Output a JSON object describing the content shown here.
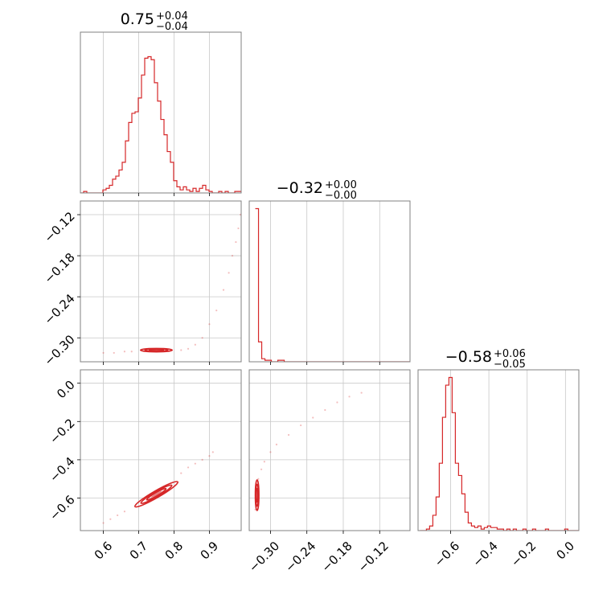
{
  "chart_data": {
    "type": "corner",
    "line_color": "#d62728",
    "grid": true,
    "panels": [
      {
        "id": "hist-p1",
        "type": "histogram",
        "row": 0,
        "col": 0,
        "title": {
          "median": "0.75",
          "plus": "+0.04",
          "minus": "−0.04"
        },
        "xlim": [
          0.535,
          0.99
        ],
        "ylim": [
          0,
          1.05
        ],
        "xticks": [
          0.6,
          0.7,
          0.8,
          0.9
        ],
        "bin_start": 0.535,
        "bin_width": 0.0091,
        "values": [
          0.0,
          0.01,
          0.0,
          0.0,
          0.0,
          0.0,
          0.0,
          0.02,
          0.03,
          0.05,
          0.09,
          0.11,
          0.15,
          0.2,
          0.34,
          0.46,
          0.52,
          0.53,
          0.62,
          0.77,
          0.88,
          0.89,
          0.87,
          0.72,
          0.6,
          0.48,
          0.38,
          0.27,
          0.2,
          0.08,
          0.04,
          0.02,
          0.04,
          0.02,
          0.01,
          0.03,
          0.01,
          0.03,
          0.05,
          0.02,
          0.01,
          0.0,
          0.0,
          0.01,
          0.0,
          0.01,
          0.0,
          0.0,
          0.01,
          0.01
        ]
      },
      {
        "id": "scatter-p1-p2",
        "type": "scatter",
        "row": 1,
        "col": 0,
        "xlim": [
          0.535,
          0.99
        ],
        "ylim": [
          -0.335,
          -0.1
        ],
        "xticks": [
          0.6,
          0.7,
          0.8,
          0.9
        ],
        "yticks": [
          -0.3,
          -0.24,
          -0.18,
          -0.12
        ],
        "ytick_labels": [
          "−0.30",
          "−0.24",
          "−0.18",
          "−0.12"
        ],
        "contour": {
          "center": [
            0.75,
            -0.318
          ],
          "radii": [
            0.045,
            0.0025
          ]
        },
        "points": [
          [
            0.6,
            -0.322
          ],
          [
            0.63,
            -0.322
          ],
          [
            0.66,
            -0.32
          ],
          [
            0.68,
            -0.32
          ],
          [
            0.82,
            -0.318
          ],
          [
            0.84,
            -0.316
          ],
          [
            0.86,
            -0.31
          ],
          [
            0.88,
            -0.3
          ],
          [
            0.9,
            -0.28
          ],
          [
            0.92,
            -0.26
          ],
          [
            0.94,
            -0.23
          ],
          [
            0.955,
            -0.205
          ],
          [
            0.965,
            -0.18
          ],
          [
            0.975,
            -0.16
          ],
          [
            0.982,
            -0.14
          ],
          [
            0.988,
            -0.12
          ]
        ]
      },
      {
        "id": "hist-p2",
        "type": "histogram",
        "row": 1,
        "col": 1,
        "title": {
          "median": "−0.32",
          "plus": "+0.00",
          "minus": "−0.00"
        },
        "xlim": [
          -0.335,
          -0.07
        ],
        "ylim": [
          0,
          1.05
        ],
        "xticks": [
          -0.3,
          -0.24,
          -0.18,
          -0.12
        ],
        "xtick_labels": [
          "−0.30",
          "−0.24",
          "−0.18",
          "−0.12"
        ],
        "bin_start": -0.325,
        "bin_width": 0.0053,
        "values": [
          1.0,
          0.13,
          0.02,
          0.01,
          0.01,
          0.0,
          0.0,
          0.01,
          0.01,
          0.0,
          0.0,
          0.0,
          0.0,
          0.0,
          0.0,
          0.0,
          0.0,
          0.0,
          0.0,
          0.0,
          0.0,
          0.0,
          0.0,
          0.0,
          0.0,
          0.0,
          0.0,
          0.0,
          0.0,
          0.0,
          0.0,
          0.0,
          0.0,
          0.0,
          0.0,
          0.0,
          0.0,
          0.0,
          0.0,
          0.0,
          0.0,
          0.0,
          0.0,
          0.0,
          0.0,
          0.0,
          0.0,
          0.0,
          0.0,
          0.0
        ]
      },
      {
        "id": "scatter-p1-p3",
        "type": "scatter",
        "row": 2,
        "col": 0,
        "xlim": [
          0.535,
          0.99
        ],
        "ylim": [
          -0.77,
          0.07
        ],
        "xticks": [
          0.6,
          0.7,
          0.8,
          0.9
        ],
        "yticks": [
          -0.6,
          -0.4,
          -0.2,
          0.0
        ],
        "ytick_labels": [
          "−0.6",
          "−0.4",
          "−0.2",
          "0.0"
        ],
        "contour": {
          "center": [
            0.75,
            -0.58
          ],
          "radii": [
            0.07,
            0.018
          ],
          "angle_deg": -30
        },
        "points": [
          [
            0.6,
            -0.73
          ],
          [
            0.62,
            -0.71
          ],
          [
            0.64,
            -0.69
          ],
          [
            0.66,
            -0.67
          ],
          [
            0.82,
            -0.47
          ],
          [
            0.84,
            -0.44
          ],
          [
            0.86,
            -0.42
          ],
          [
            0.88,
            -0.4
          ],
          [
            0.9,
            -0.38
          ],
          [
            0.91,
            -0.36
          ]
        ]
      },
      {
        "id": "scatter-p2-p3",
        "type": "scatter",
        "row": 2,
        "col": 1,
        "xlim": [
          -0.335,
          -0.07
        ],
        "ylim": [
          -0.77,
          0.07
        ],
        "xticks": [
          -0.3,
          -0.24,
          -0.18,
          -0.12
        ],
        "xtick_labels": [
          "−0.30",
          "−0.24",
          "−0.18",
          "−0.12"
        ],
        "yticks": [
          0.0,
          -0.2,
          -0.4,
          -0.6
        ],
        "contour": {
          "center": [
            -0.322,
            -0.585
          ],
          "radii": [
            0.003,
            0.08
          ]
        },
        "points": [
          [
            -0.325,
            -0.66
          ],
          [
            -0.32,
            -0.5
          ],
          [
            -0.315,
            -0.45
          ],
          [
            -0.31,
            -0.41
          ],
          [
            -0.3,
            -0.36
          ],
          [
            -0.29,
            -0.32
          ],
          [
            -0.27,
            -0.27
          ],
          [
            -0.25,
            -0.22
          ],
          [
            -0.23,
            -0.18
          ],
          [
            -0.21,
            -0.14
          ],
          [
            -0.19,
            -0.1
          ],
          [
            -0.17,
            -0.07
          ],
          [
            -0.15,
            -0.05
          ]
        ]
      },
      {
        "id": "hist-p3",
        "type": "histogram",
        "row": 2,
        "col": 2,
        "title": {
          "median": "−0.58",
          "plus": "+0.06",
          "minus": "−0.05"
        },
        "xlim": [
          -0.77,
          0.07
        ],
        "ylim": [
          0,
          1.05
        ],
        "xticks": [
          -0.6,
          -0.4,
          -0.2,
          0.0
        ],
        "xtick_labels": [
          "−0.6",
          "−0.4",
          "−0.2",
          "0.0"
        ],
        "bin_start": -0.76,
        "bin_width": 0.0168,
        "values": [
          0.0,
          0.0,
          0.01,
          0.03,
          0.1,
          0.22,
          0.44,
          0.74,
          0.95,
          1.0,
          0.77,
          0.44,
          0.36,
          0.24,
          0.12,
          0.05,
          0.03,
          0.02,
          0.03,
          0.01,
          0.02,
          0.03,
          0.02,
          0.02,
          0.01,
          0.01,
          0.0,
          0.01,
          0.0,
          0.01,
          0.0,
          0.0,
          0.01,
          0.0,
          0.0,
          0.01,
          0.0,
          0.0,
          0.0,
          0.01,
          0.0,
          0.0,
          0.0,
          0.0,
          0.0,
          0.01,
          0.0,
          0.0,
          0.0,
          0.0
        ]
      }
    ]
  }
}
